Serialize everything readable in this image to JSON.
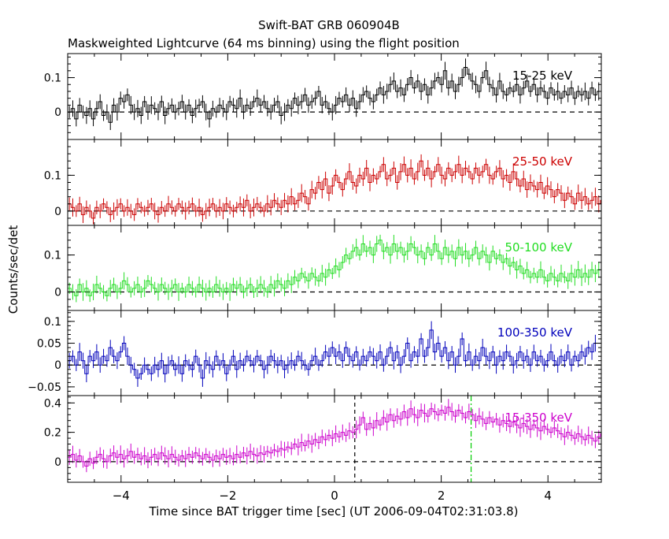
{
  "figure": {
    "title": "Swift-BAT GRB 060904B",
    "subtitle": "Maskweighted Lightcurve (64 ms binning) using the flight position",
    "xlabel": "Time since BAT trigger time [sec] (UT 2006-09-04T02:31:03.8)",
    "ylabel": "Counts/sec/det"
  },
  "chart_data": [
    {
      "type": "line",
      "step": true,
      "band": "15-25 keV",
      "series_color": "#000000",
      "xlim": [
        -5,
        5
      ],
      "ylim": [
        -0.08,
        0.17
      ],
      "yticks": [
        0,
        0.1
      ],
      "ytick_labels": [
        "0",
        "0.1"
      ],
      "xticks": [
        -4,
        -2,
        0,
        2,
        4
      ],
      "xtick_labels": [],
      "zero_line": true,
      "x_start": -5.0,
      "bin_width": 0.064,
      "values": [
        0.0,
        0.01,
        -0.02,
        0.02,
        0.0,
        -0.01,
        0.01,
        -0.02,
        0.01,
        0.03,
        -0.01,
        0.0,
        -0.03,
        0.02,
        0.0,
        0.04,
        0.03,
        0.05,
        0.02,
        0.0,
        0.01,
        -0.01,
        0.03,
        0.0,
        0.02,
        0.01,
        0.0,
        0.03,
        -0.01,
        0.01,
        0.02,
        0.0,
        0.01,
        0.03,
        0.0,
        0.02,
        -0.01,
        0.01,
        0.02,
        0.03,
        0.0,
        -0.02,
        0.01,
        0.0,
        0.02,
        0.01,
        0.0,
        0.03,
        0.02,
        0.01,
        0.04,
        0.0,
        0.02,
        0.01,
        0.03,
        0.04,
        0.02,
        0.03,
        0.01,
        0.0,
        0.02,
        0.03,
        -0.01,
        0.0,
        0.02,
        0.01,
        0.04,
        0.02,
        0.03,
        0.05,
        0.02,
        0.03,
        0.04,
        0.06,
        0.02,
        0.03,
        0.01,
        0.0,
        0.02,
        0.04,
        0.03,
        0.05,
        0.02,
        0.04,
        0.01,
        0.03,
        0.05,
        0.06,
        0.04,
        0.03,
        0.05,
        0.07,
        0.05,
        0.06,
        0.08,
        0.09,
        0.06,
        0.07,
        0.05,
        0.08,
        0.1,
        0.07,
        0.09,
        0.06,
        0.08,
        0.05,
        0.07,
        0.09,
        0.1,
        0.08,
        0.12,
        0.07,
        0.09,
        0.06,
        0.08,
        0.1,
        0.13,
        0.11,
        0.09,
        0.08,
        0.06,
        0.1,
        0.12,
        0.08,
        0.07,
        0.05,
        0.09,
        0.06,
        0.05,
        0.07,
        0.06,
        0.08,
        0.05,
        0.07,
        0.09,
        0.06,
        0.08,
        0.05,
        0.07,
        0.06,
        0.04,
        0.07,
        0.05,
        0.06,
        0.04,
        0.06,
        0.05,
        0.07,
        0.04,
        0.06,
        0.05,
        0.06,
        0.04,
        0.07,
        0.05,
        0.06
      ]
    },
    {
      "type": "line",
      "step": true,
      "band": "25-50 keV",
      "series_color": "#cc0000",
      "xlim": [
        -5,
        5
      ],
      "ylim": [
        -0.04,
        0.2
      ],
      "yticks": [
        0,
        0.1
      ],
      "ytick_labels": [
        "0",
        "0.1"
      ],
      "xticks": [
        -4,
        -2,
        0,
        2,
        4
      ],
      "xtick_labels": [],
      "zero_line": true,
      "x_start": -5.0,
      "bin_width": 0.064,
      "values": [
        0.02,
        0.01,
        0.0,
        0.02,
        -0.01,
        0.01,
        0.0,
        -0.02,
        0.01,
        0.0,
        0.02,
        0.01,
        -0.01,
        0.0,
        0.01,
        0.02,
        0.0,
        0.01,
        0.0,
        -0.01,
        0.02,
        0.01,
        0.0,
        0.01,
        0.02,
        0.0,
        -0.01,
        0.01,
        0.0,
        0.02,
        0.01,
        0.0,
        0.02,
        0.01,
        0.0,
        0.01,
        0.02,
        0.0,
        0.01,
        -0.01,
        0.0,
        0.01,
        0.02,
        0.0,
        0.01,
        0.0,
        0.02,
        0.01,
        0.0,
        0.01,
        0.02,
        0.01,
        0.03,
        0.0,
        0.01,
        0.02,
        0.01,
        0.0,
        0.02,
        0.01,
        0.03,
        0.02,
        0.01,
        0.03,
        0.02,
        0.04,
        0.02,
        0.03,
        0.05,
        0.04,
        0.02,
        0.06,
        0.05,
        0.08,
        0.06,
        0.09,
        0.05,
        0.07,
        0.1,
        0.08,
        0.06,
        0.09,
        0.11,
        0.08,
        0.07,
        0.1,
        0.09,
        0.12,
        0.08,
        0.1,
        0.09,
        0.11,
        0.13,
        0.09,
        0.1,
        0.12,
        0.08,
        0.11,
        0.13,
        0.1,
        0.12,
        0.09,
        0.11,
        0.14,
        0.1,
        0.12,
        0.09,
        0.11,
        0.13,
        0.1,
        0.09,
        0.12,
        0.1,
        0.11,
        0.13,
        0.1,
        0.12,
        0.11,
        0.09,
        0.12,
        0.1,
        0.11,
        0.13,
        0.1,
        0.09,
        0.11,
        0.12,
        0.09,
        0.1,
        0.08,
        0.11,
        0.09,
        0.07,
        0.09,
        0.06,
        0.08,
        0.07,
        0.06,
        0.08,
        0.05,
        0.07,
        0.06,
        0.04,
        0.06,
        0.05,
        0.03,
        0.05,
        0.04,
        0.02,
        0.05,
        0.03,
        0.04,
        0.02,
        0.03,
        0.04,
        0.02,
        0.03
      ]
    },
    {
      "type": "line",
      "step": true,
      "band": "50-100 keV",
      "series_color": "#22dd22",
      "xlim": [
        -5,
        5
      ],
      "ylim": [
        -0.05,
        0.18
      ],
      "yticks": [
        0,
        0.1
      ],
      "ytick_labels": [
        "0",
        "0.1"
      ],
      "xticks": [
        -4,
        -2,
        0,
        2,
        4
      ],
      "xtick_labels": [],
      "zero_line": true,
      "x_start": -5.0,
      "bin_width": 0.064,
      "values": [
        0.01,
        0.0,
        -0.01,
        0.02,
        0.0,
        0.01,
        -0.01,
        0.0,
        0.02,
        0.01,
        0.0,
        -0.01,
        0.01,
        0.02,
        0.0,
        0.01,
        0.03,
        0.02,
        0.0,
        0.01,
        0.02,
        0.0,
        0.01,
        0.03,
        0.02,
        0.01,
        0.0,
        0.02,
        0.01,
        0.0,
        0.01,
        0.02,
        0.0,
        0.01,
        0.0,
        0.02,
        0.01,
        0.0,
        0.02,
        0.01,
        0.0,
        0.01,
        0.0,
        0.02,
        0.01,
        0.0,
        0.01,
        0.0,
        0.02,
        0.01,
        0.02,
        0.0,
        0.01,
        0.02,
        0.0,
        0.01,
        0.02,
        0.01,
        0.0,
        0.02,
        0.01,
        0.03,
        0.02,
        0.01,
        0.03,
        0.02,
        0.04,
        0.03,
        0.05,
        0.04,
        0.03,
        0.05,
        0.04,
        0.03,
        0.05,
        0.04,
        0.06,
        0.05,
        0.07,
        0.06,
        0.08,
        0.1,
        0.09,
        0.11,
        0.12,
        0.1,
        0.13,
        0.11,
        0.12,
        0.1,
        0.13,
        0.14,
        0.11,
        0.12,
        0.1,
        0.13,
        0.11,
        0.12,
        0.1,
        0.11,
        0.13,
        0.12,
        0.1,
        0.11,
        0.09,
        0.12,
        0.1,
        0.13,
        0.11,
        0.09,
        0.12,
        0.1,
        0.11,
        0.09,
        0.12,
        0.1,
        0.11,
        0.09,
        0.1,
        0.12,
        0.09,
        0.11,
        0.1,
        0.08,
        0.11,
        0.09,
        0.1,
        0.08,
        0.09,
        0.07,
        0.08,
        0.06,
        0.07,
        0.05,
        0.06,
        0.04,
        0.05,
        0.04,
        0.06,
        0.04,
        0.03,
        0.05,
        0.04,
        0.03,
        0.05,
        0.04,
        0.03,
        0.05,
        0.04,
        0.06,
        0.04,
        0.05,
        0.04,
        0.06,
        0.05,
        0.06
      ]
    },
    {
      "type": "line",
      "step": true,
      "band": "100-350 keV",
      "series_color": "#0000bb",
      "xlim": [
        -5,
        5
      ],
      "ylim": [
        -0.07,
        0.125
      ],
      "yticks": [
        -0.05,
        0,
        0.05,
        0.1
      ],
      "ytick_labels": [
        "−0.05",
        "0",
        "0.05",
        "0.1"
      ],
      "xticks": [
        -4,
        -2,
        0,
        2,
        4
      ],
      "xtick_labels": [],
      "zero_line": true,
      "x_start": -5.0,
      "bin_width": 0.064,
      "values": [
        0.01,
        0.02,
        0.0,
        0.03,
        0.01,
        -0.02,
        0.02,
        0.01,
        0.03,
        0.0,
        0.02,
        0.01,
        0.04,
        0.02,
        0.01,
        0.03,
        0.05,
        0.02,
        0.0,
        -0.01,
        -0.03,
        -0.02,
        0.0,
        -0.01,
        -0.02,
        0.0,
        -0.01,
        0.01,
        -0.02,
        0.0,
        0.01,
        -0.01,
        0.0,
        -0.02,
        0.01,
        0.0,
        -0.01,
        0.02,
        0.0,
        -0.03,
        0.01,
        0.0,
        -0.01,
        0.02,
        0.0,
        0.01,
        -0.02,
        0.0,
        0.02,
        -0.01,
        0.01,
        0.0,
        0.02,
        0.01,
        0.0,
        0.02,
        0.01,
        -0.01,
        0.0,
        0.02,
        0.01,
        0.0,
        0.01,
        -0.01,
        0.0,
        0.01,
        0.0,
        0.02,
        0.01,
        0.0,
        -0.01,
        0.01,
        0.02,
        0.0,
        0.01,
        0.03,
        0.02,
        0.04,
        0.02,
        0.03,
        0.01,
        0.04,
        0.02,
        0.01,
        0.03,
        0.0,
        0.02,
        0.01,
        0.03,
        0.02,
        0.01,
        0.03,
        0.0,
        0.02,
        0.04,
        0.01,
        0.03,
        0.0,
        0.02,
        0.05,
        0.01,
        0.03,
        0.02,
        0.06,
        0.02,
        0.04,
        0.08,
        0.03,
        0.05,
        0.02,
        0.04,
        0.01,
        0.03,
        0.0,
        0.02,
        0.06,
        0.01,
        0.03,
        0.0,
        0.02,
        0.01,
        0.04,
        0.02,
        0.01,
        0.03,
        0.0,
        0.02,
        0.01,
        0.03,
        0.02,
        0.0,
        0.01,
        0.03,
        0.01,
        0.02,
        0.0,
        0.03,
        0.01,
        0.02,
        0.0,
        0.01,
        0.03,
        0.01,
        0.0,
        0.02,
        0.01,
        0.03,
        0.0,
        0.02,
        0.01,
        0.03,
        0.02,
        0.04,
        0.03,
        0.05
      ]
    },
    {
      "type": "line",
      "step": true,
      "band": "15-350 keV",
      "series_color": "#cc00cc",
      "xlim": [
        -5,
        5
      ],
      "ylim": [
        -0.14,
        0.45
      ],
      "yticks": [
        0,
        0.2,
        0.4
      ],
      "ytick_labels": [
        "0",
        "0.2",
        "0.4"
      ],
      "xticks": [
        -4,
        -2,
        0,
        2,
        4
      ],
      "xtick_labels": [
        "−4",
        "−2",
        "0",
        "2",
        "4"
      ],
      "zero_line": true,
      "vlines": [
        {
          "x": 0.38,
          "color": "#000000"
        },
        {
          "x": 2.56,
          "color": "#00cc00"
        }
      ],
      "x_start": -5.0,
      "bin_width": 0.064,
      "values": [
        0.03,
        0.05,
        0.01,
        0.04,
        0.0,
        -0.03,
        0.02,
        -0.01,
        0.03,
        0.05,
        0.02,
        0.0,
        0.04,
        0.06,
        0.03,
        0.05,
        0.02,
        0.04,
        0.07,
        0.03,
        0.05,
        0.02,
        0.04,
        0.01,
        0.03,
        0.05,
        0.02,
        0.06,
        0.04,
        0.02,
        0.05,
        0.03,
        0.01,
        0.04,
        0.02,
        0.05,
        0.03,
        0.06,
        0.04,
        0.02,
        0.05,
        0.03,
        0.01,
        0.04,
        0.02,
        0.05,
        0.03,
        0.04,
        0.02,
        0.05,
        0.03,
        0.06,
        0.04,
        0.07,
        0.05,
        0.04,
        0.06,
        0.05,
        0.07,
        0.06,
        0.08,
        0.07,
        0.09,
        0.08,
        0.1,
        0.09,
        0.12,
        0.1,
        0.13,
        0.11,
        0.14,
        0.12,
        0.15,
        0.13,
        0.17,
        0.15,
        0.18,
        0.16,
        0.19,
        0.17,
        0.2,
        0.18,
        0.21,
        0.2,
        0.22,
        0.25,
        0.3,
        0.22,
        0.26,
        0.23,
        0.28,
        0.25,
        0.3,
        0.27,
        0.32,
        0.28,
        0.31,
        0.29,
        0.34,
        0.3,
        0.36,
        0.32,
        0.3,
        0.35,
        0.33,
        0.31,
        0.36,
        0.34,
        0.32,
        0.35,
        0.33,
        0.37,
        0.34,
        0.31,
        0.35,
        0.33,
        0.3,
        0.34,
        0.32,
        0.28,
        0.31,
        0.29,
        0.26,
        0.3,
        0.27,
        0.29,
        0.25,
        0.28,
        0.26,
        0.24,
        0.27,
        0.25,
        0.23,
        0.26,
        0.24,
        0.22,
        0.25,
        0.23,
        0.21,
        0.24,
        0.22,
        0.2,
        0.23,
        0.21,
        0.19,
        0.17,
        0.2,
        0.18,
        0.16,
        0.19,
        0.17,
        0.15,
        0.18,
        0.16,
        0.14,
        0.17,
        0.19
      ]
    }
  ]
}
